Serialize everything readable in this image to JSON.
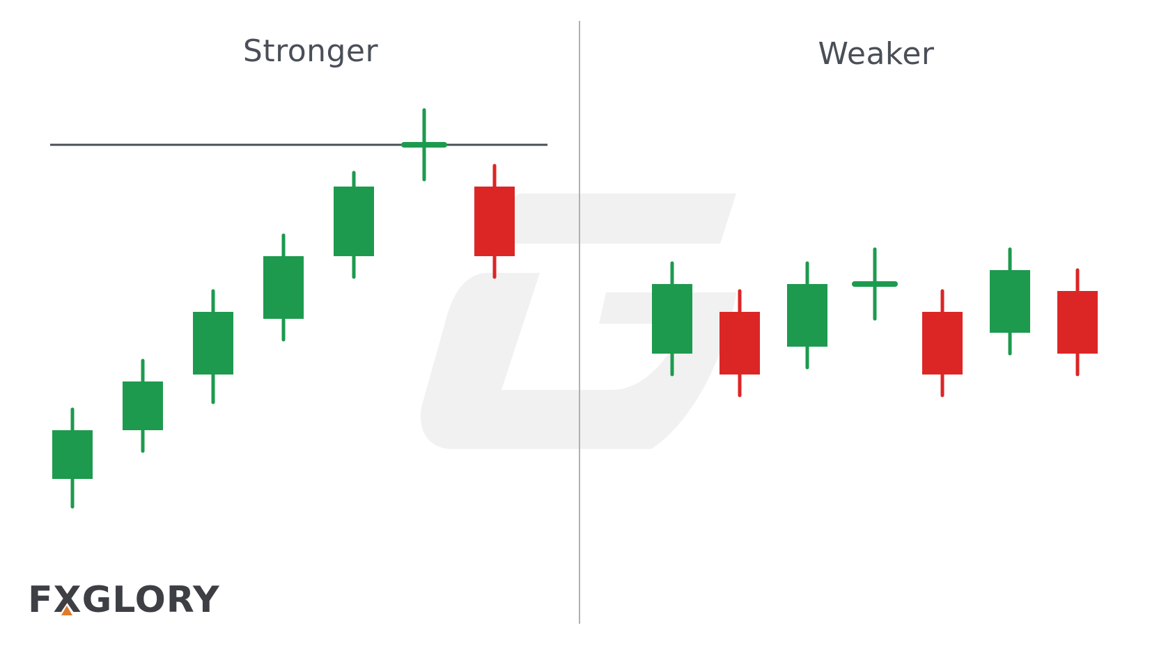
{
  "colors": {
    "bullish": "#1d9a4e",
    "bearish": "#dc2626",
    "resistance_line": "#4a4f57",
    "divider": "#b0b0b0",
    "watermark": "#f1f1f1"
  },
  "logo": {
    "text": "FXGLORY",
    "accent_color": "#e07b2a"
  },
  "watermark_icon": "g-logo-watermark",
  "chart_data": [
    {
      "type": "candlestick",
      "title": "Stronger",
      "ylim": [
        0,
        100
      ],
      "resistance_level": 72,
      "candles": [
        {
          "open": 24,
          "close": 31,
          "high": 34,
          "low": 20,
          "direction": "up"
        },
        {
          "open": 31,
          "close": 38,
          "high": 41,
          "low": 28,
          "direction": "up"
        },
        {
          "open": 39,
          "close": 48,
          "high": 51,
          "low": 35,
          "direction": "up"
        },
        {
          "open": 47,
          "close": 56,
          "high": 59,
          "low": 44,
          "direction": "up"
        },
        {
          "open": 56,
          "close": 66,
          "high": 68,
          "low": 53,
          "direction": "up"
        },
        {
          "open": 72,
          "close": 72,
          "high": 77,
          "low": 67,
          "direction": "doji"
        },
        {
          "open": 66,
          "close": 56,
          "high": 69,
          "low": 53,
          "direction": "down"
        }
      ]
    },
    {
      "type": "candlestick",
      "title": "Weaker",
      "ylim": [
        0,
        100
      ],
      "candles": [
        {
          "open": 42,
          "close": 52,
          "high": 55,
          "low": 39,
          "direction": "up"
        },
        {
          "open": 48,
          "close": 39,
          "high": 51,
          "low": 36,
          "direction": "down"
        },
        {
          "open": 43,
          "close": 52,
          "high": 55,
          "low": 40,
          "direction": "up"
        },
        {
          "open": 52,
          "close": 52,
          "high": 57,
          "low": 47,
          "direction": "doji"
        },
        {
          "open": 48,
          "close": 39,
          "high": 51,
          "low": 36,
          "direction": "down"
        },
        {
          "open": 45,
          "close": 54,
          "high": 57,
          "low": 42,
          "direction": "up"
        },
        {
          "open": 51,
          "close": 42,
          "high": 54,
          "low": 39,
          "direction": "down"
        }
      ]
    }
  ]
}
